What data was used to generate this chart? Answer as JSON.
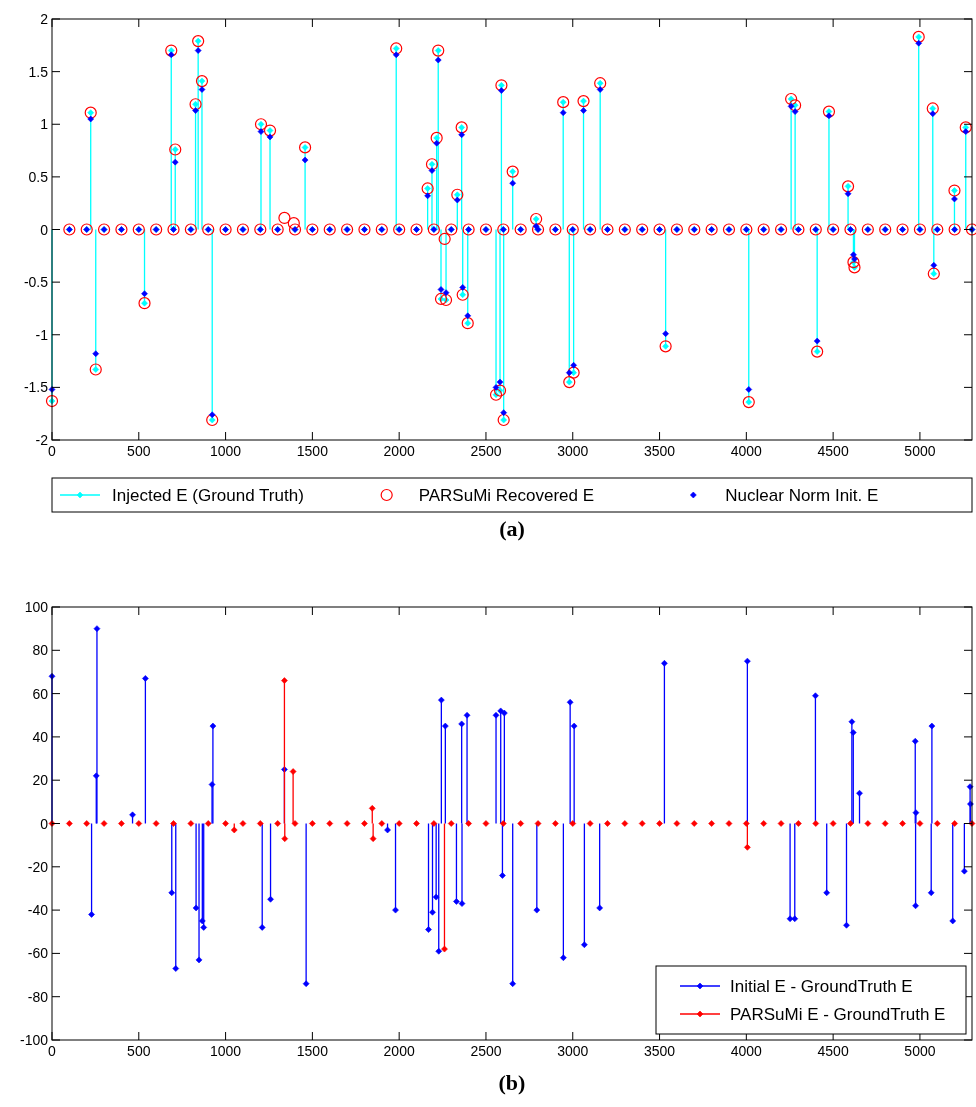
{
  "chart_data": [
    {
      "type": "lollipop",
      "xlim": [
        0,
        5300
      ],
      "xticks": [
        0,
        500,
        1000,
        1500,
        2000,
        2500,
        3000,
        3500,
        4000,
        4500,
        5000
      ],
      "ylim": [
        -2,
        2
      ],
      "yticks": [
        -2,
        -1.5,
        -1,
        -0.5,
        0,
        0.5,
        1,
        1.5,
        2
      ],
      "legend": "bottom",
      "annotations": [
        "(a)"
      ],
      "series": [
        {
          "name": "Injected E (Ground Truth)",
          "marker": "diamond",
          "color": "#00ffff",
          "x": [
            0,
            223,
            252,
            533,
            687,
            710,
            827,
            842,
            864,
            923,
            1204,
            1256,
            1458,
            1983,
            2164,
            2189,
            2216,
            2225,
            2241,
            2270,
            2335,
            2360,
            2366,
            2395,
            2558,
            2581,
            2589,
            2602,
            2654,
            2789,
            2945,
            2980,
            3005,
            3062,
            3158,
            3535,
            4014,
            4258,
            4281,
            4408,
            4476,
            4586,
            4617,
            4623,
            4993,
            5074,
            5080,
            5199,
            5264,
            100,
            200,
            300,
            400,
            500,
            600,
            700,
            800,
            900,
            1000,
            1100,
            1200,
            1300,
            1400,
            1500,
            1600,
            1700,
            1800,
            1900,
            2000,
            2100,
            2200,
            2300,
            2400,
            2500,
            2600,
            2700,
            2800,
            2900,
            3000,
            3100,
            3200,
            3300,
            3400,
            3500,
            3600,
            3700,
            3800,
            3900,
            4000,
            4100,
            4200,
            4300,
            4400,
            4500,
            4600,
            4700,
            4800,
            4900,
            5000,
            5100,
            5200,
            5300
          ],
          "values": [
            -1.63,
            1.11,
            -1.33,
            -0.7,
            1.7,
            0.76,
            1.19,
            1.79,
            1.41,
            -1.81,
            1.0,
            0.94,
            0.78,
            1.72,
            0.39,
            0.62,
            0.87,
            1.7,
            -0.66,
            -0.67,
            0.33,
            0.97,
            -0.62,
            -0.89,
            -1.57,
            -1.53,
            1.37,
            -1.81,
            0.55,
            0.1,
            1.21,
            -1.45,
            -1.36,
            1.22,
            1.39,
            -1.11,
            -1.64,
            1.24,
            1.18,
            -1.16,
            1.12,
            0.41,
            -0.31,
            -0.36,
            1.83,
            1.15,
            -0.42,
            0.37,
            0.97,
            0,
            0,
            0,
            0,
            0,
            0,
            0,
            0,
            0,
            0,
            0,
            0,
            0,
            0,
            0,
            0,
            0,
            0,
            0,
            0,
            0,
            0,
            0,
            0,
            0,
            0,
            0,
            0,
            0,
            0,
            0,
            0,
            0,
            0,
            0,
            0,
            0,
            0,
            0,
            0,
            0,
            0,
            0,
            0,
            0,
            0,
            0,
            0,
            0,
            0,
            0,
            0,
            0
          ]
        },
        {
          "name": "PARSuMi Recovered E",
          "type": "scatter",
          "marker": "circle",
          "color": "#ff0000",
          "x": [
            0,
            223,
            252,
            533,
            687,
            710,
            827,
            842,
            864,
            923,
            1204,
            1256,
            1458,
            1983,
            2164,
            2189,
            2216,
            2225,
            2241,
            2270,
            2335,
            2360,
            2366,
            2395,
            2558,
            2581,
            2589,
            2602,
            2654,
            2789,
            2945,
            2980,
            3005,
            3062,
            3158,
            3535,
            4014,
            4258,
            4281,
            4408,
            4476,
            4586,
            4617,
            4623,
            4993,
            5074,
            5080,
            5199,
            5264,
            1339,
            1393,
            2262,
            100,
            200,
            300,
            400,
            500,
            600,
            700,
            800,
            900,
            1000,
            1100,
            1200,
            1300,
            1400,
            1500,
            1600,
            1700,
            1800,
            1900,
            2000,
            2100,
            2200,
            2300,
            2400,
            2500,
            2600,
            2700,
            2800,
            2900,
            3000,
            3100,
            3200,
            3300,
            3400,
            3500,
            3600,
            3700,
            3800,
            3900,
            4000,
            4100,
            4200,
            4300,
            4400,
            4500,
            4600,
            4700,
            4800,
            4900,
            5000,
            5100,
            5200,
            5300
          ],
          "values": [
            -1.63,
            1.11,
            -1.33,
            -0.7,
            1.7,
            0.76,
            1.19,
            1.79,
            1.41,
            -1.81,
            1.0,
            0.94,
            0.78,
            1.72,
            0.39,
            0.62,
            0.87,
            1.7,
            -0.66,
            -0.67,
            0.33,
            0.97,
            -0.62,
            -0.89,
            -1.57,
            -1.53,
            1.37,
            -1.81,
            0.55,
            0.1,
            1.21,
            -1.45,
            -1.36,
            1.22,
            1.39,
            -1.11,
            -1.64,
            1.24,
            1.18,
            -1.16,
            1.12,
            0.41,
            -0.31,
            -0.36,
            1.83,
            1.15,
            -0.42,
            0.37,
            0.97,
            0.11,
            0.06,
            -0.09,
            0,
            0,
            0,
            0,
            0,
            0,
            0,
            0,
            0,
            0,
            0,
            0,
            0,
            0,
            0,
            0,
            0,
            0,
            0,
            0,
            0,
            0,
            0,
            0,
            0,
            0,
            0,
            0,
            0,
            0,
            0,
            0,
            0,
            0,
            0,
            0,
            0,
            0,
            0,
            0,
            0,
            0,
            0,
            0,
            0,
            0,
            0,
            0,
            0,
            0,
            0,
            0,
            0
          ]
        },
        {
          "name": "Nuclear Norm Init. E",
          "type": "scatter",
          "marker": "diamond",
          "color": "#0000ff",
          "x": [
            0,
            223,
            252,
            533,
            687,
            710,
            827,
            842,
            864,
            923,
            1204,
            1256,
            1458,
            1983,
            2164,
            2189,
            2216,
            2225,
            2241,
            2270,
            2335,
            2360,
            2366,
            2395,
            2558,
            2581,
            2589,
            2602,
            2654,
            2789,
            2945,
            2980,
            3005,
            3062,
            3158,
            3535,
            4014,
            4258,
            4281,
            4408,
            4476,
            4586,
            4617,
            4623,
            4993,
            5074,
            5080,
            5199,
            5264,
            100,
            200,
            300,
            400,
            500,
            600,
            700,
            800,
            900,
            1000,
            1100,
            1200,
            1300,
            1400,
            1500,
            1600,
            1700,
            1800,
            1900,
            2000,
            2100,
            2200,
            2300,
            2400,
            2500,
            2600,
            2700,
            2800,
            2900,
            3000,
            3100,
            3200,
            3300,
            3400,
            3500,
            3600,
            3700,
            3800,
            3900,
            4000,
            4100,
            4200,
            4300,
            4400,
            4500,
            4600,
            4700,
            4800,
            4900,
            5000,
            5100,
            5200,
            5300
          ],
          "values": [
            -1.52,
            1.05,
            -1.18,
            -0.61,
            1.66,
            0.64,
            1.13,
            1.7,
            1.33,
            -1.76,
            0.93,
            0.88,
            0.66,
            1.66,
            0.32,
            0.56,
            0.82,
            1.61,
            -0.57,
            -0.6,
            0.28,
            0.9,
            -0.55,
            -0.82,
            -1.5,
            -1.45,
            1.32,
            -1.74,
            0.44,
            0.03,
            1.11,
            -1.36,
            -1.29,
            1.13,
            1.33,
            -0.99,
            -1.52,
            1.17,
            1.12,
            -1.06,
            1.08,
            0.34,
            -0.24,
            -0.28,
            1.77,
            1.1,
            -0.34,
            0.29,
            0.93,
            0,
            0,
            0,
            0,
            0,
            0,
            0,
            0,
            0,
            0,
            0,
            0,
            0,
            0,
            0,
            0,
            0,
            0,
            0,
            0,
            0,
            0,
            0,
            0,
            0,
            0,
            0,
            0,
            0,
            0,
            0,
            0,
            0,
            0,
            0,
            0,
            0,
            0,
            0,
            0,
            0,
            0,
            0,
            0,
            0,
            0,
            0,
            0,
            0,
            0,
            0,
            0,
            0
          ]
        }
      ]
    },
    {
      "type": "lollipop",
      "xlim": [
        0,
        5300
      ],
      "xticks": [
        0,
        500,
        1000,
        1500,
        2000,
        2500,
        3000,
        3500,
        4000,
        4500,
        5000
      ],
      "ylim": [
        -100,
        100
      ],
      "yticks": [
        -100,
        -80,
        -60,
        -40,
        -20,
        0,
        20,
        40,
        60,
        80,
        100
      ],
      "legend": "bottom right",
      "annotations": [
        "(b)"
      ],
      "series": [
        {
          "name": "Initial E - GroundTruth E",
          "marker": "diamond",
          "color": "#0000ff",
          "x": [
            0,
            228,
            255,
            259,
            464,
            538,
            690,
            713,
            830,
            847,
            866,
            874,
            922,
            927,
            1211,
            1259,
            1339,
            1464,
            1933,
            1979,
            2169,
            2192,
            2213,
            2228,
            2243,
            2266,
            2330,
            2360,
            2362,
            2391,
            2558,
            2585,
            2595,
            2606,
            2654,
            2793,
            2946,
            2985,
            3008,
            3067,
            3155,
            3528,
            4006,
            4252,
            4279,
            4398,
            4463,
            4577,
            4608,
            4616,
            4652,
            4973,
            4975,
            4977,
            5065,
            5069,
            5189,
            5256,
            5289,
            5291
          ],
          "values": [
            68,
            -42,
            22,
            90,
            4,
            67,
            -32,
            -67,
            -39,
            -63,
            -45,
            -48,
            18,
            45,
            -48,
            -35,
            25,
            -74,
            -3,
            -40,
            -49,
            -41,
            -34,
            -59,
            57,
            45,
            -36,
            46,
            -37,
            50,
            50,
            52,
            -24,
            51,
            -74,
            -40,
            -62,
            56,
            45,
            -56,
            -39,
            74,
            75,
            -44,
            -44,
            59,
            -32,
            -47,
            47,
            42,
            14,
            38,
            -38,
            5,
            -32,
            45,
            -45,
            -22,
            17,
            9
          ]
        },
        {
          "name": "PARSuMi E - GroundTruth E",
          "marker": "diamond",
          "color": "#ff0000",
          "x": [
            1339,
            1341,
            1389,
            2261,
            4006,
            1845,
            1850,
            1050,
            0,
            100,
            200,
            300,
            400,
            500,
            600,
            700,
            800,
            900,
            1000,
            1100,
            1200,
            1300,
            1400,
            1500,
            1600,
            1700,
            1800,
            1900,
            2000,
            2100,
            2200,
            2300,
            2400,
            2500,
            2600,
            2700,
            2800,
            2900,
            3000,
            3100,
            3200,
            3300,
            3400,
            3500,
            3600,
            3700,
            3800,
            3900,
            4000,
            4100,
            4200,
            4300,
            4400,
            4500,
            4600,
            4700,
            4800,
            4900,
            5000,
            5100,
            5200,
            5300
          ],
          "values": [
            66,
            -7,
            24,
            -58,
            -11,
            7,
            -7,
            -3,
            0,
            0,
            0,
            0,
            0,
            0,
            0,
            0,
            0,
            0,
            0,
            0,
            0,
            0,
            0,
            0,
            0,
            0,
            0,
            0,
            0,
            0,
            0,
            0,
            0,
            0,
            0,
            0,
            0,
            0,
            0,
            0,
            0,
            0,
            0,
            0,
            0,
            0,
            0,
            0,
            0,
            0,
            0,
            0,
            0,
            0,
            0,
            0,
            0,
            0,
            0,
            0,
            0,
            0
          ]
        }
      ]
    }
  ]
}
